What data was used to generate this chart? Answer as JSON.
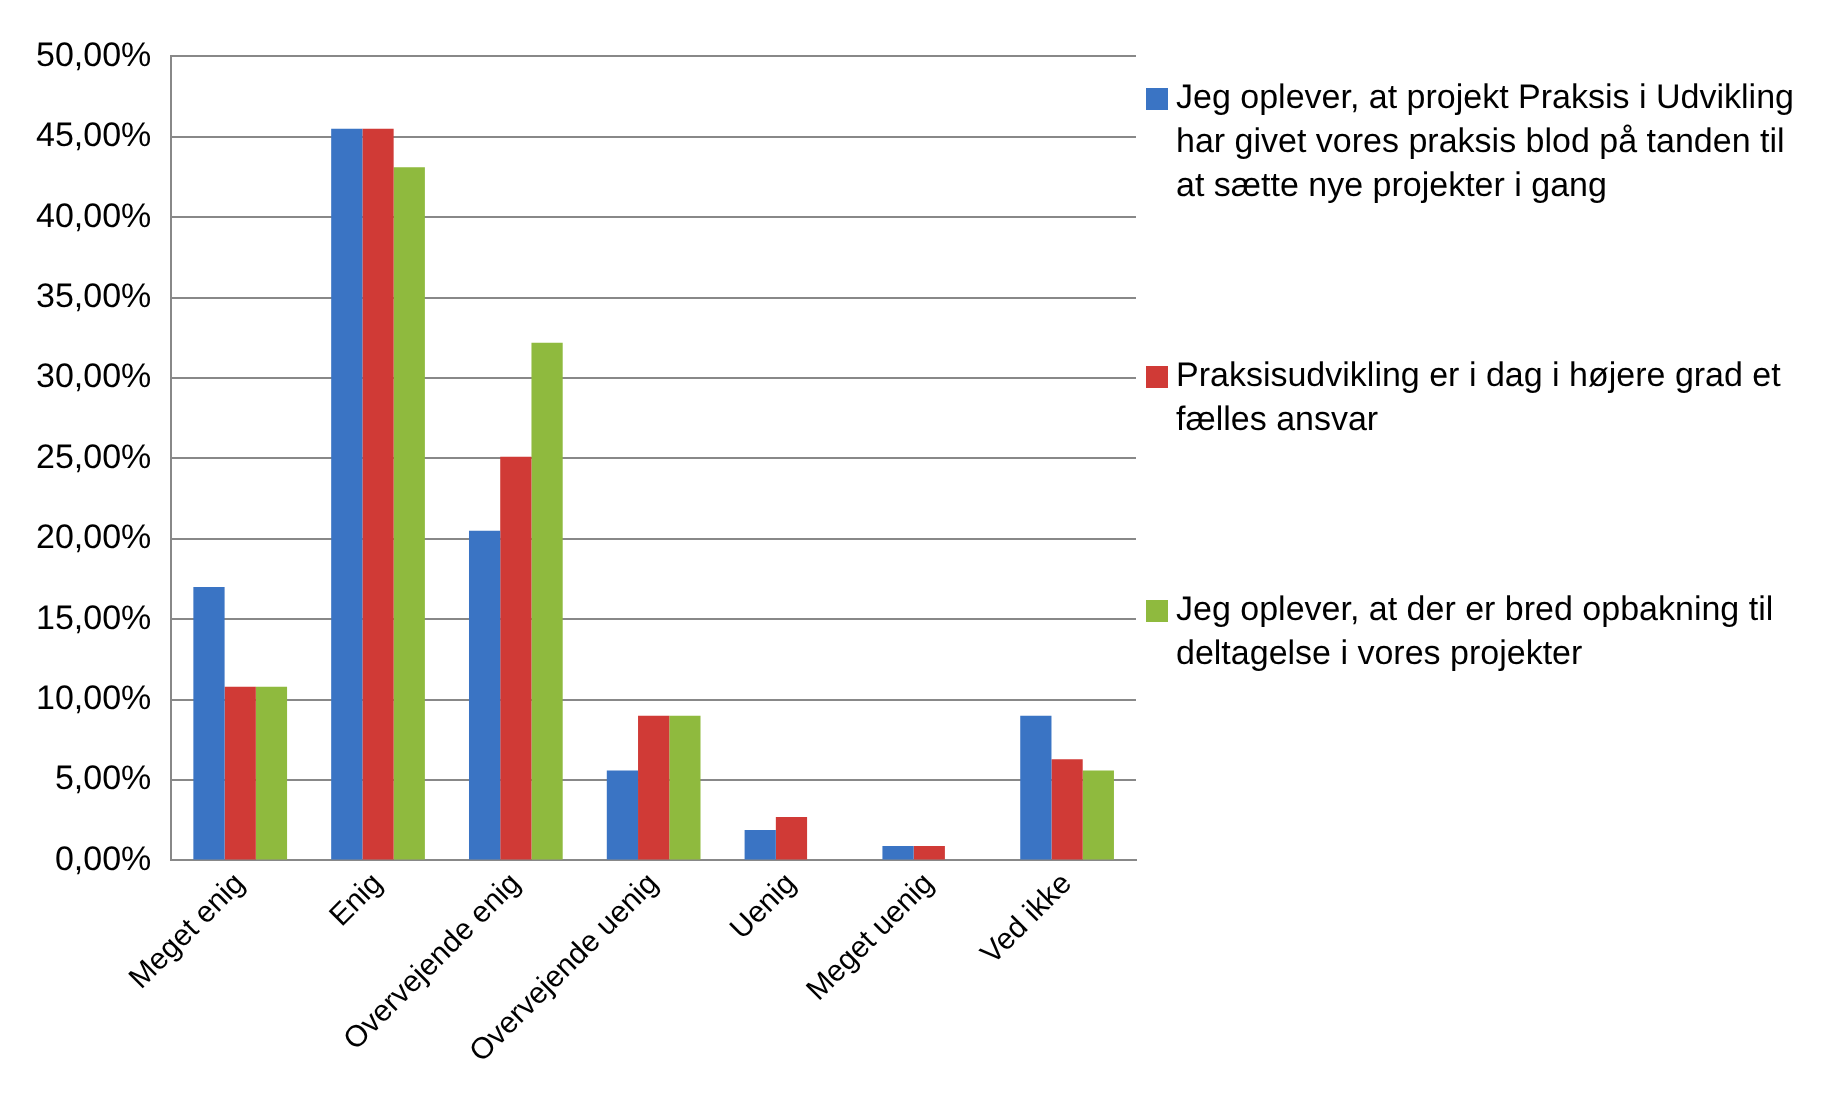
{
  "chart_data": {
    "type": "bar",
    "categories": [
      "Meget enig",
      "Enig",
      "Overvejende enig",
      "Overvejende uenig",
      "Uenig",
      "Meget uenig",
      "Ved ikke"
    ],
    "series": [
      {
        "name": "Jeg oplever, at projekt Praksis i Udvikling har givet vores praksis blod på tanden til at sætte nye projekter i gang",
        "color": "#3a74c4",
        "values": [
          17.0,
          45.5,
          20.5,
          5.6,
          1.9,
          0.9,
          9.0
        ]
      },
      {
        "name": "Praksisudvikling er i dag i højere grad et fælles ansvar",
        "color": "#d03a36",
        "values": [
          10.8,
          45.5,
          25.1,
          9.0,
          2.7,
          0.9,
          6.3
        ]
      },
      {
        "name": "Jeg oplever, at der er bred opbakning til deltagelse i vores projekter",
        "color": "#8fba3e",
        "values": [
          10.8,
          43.1,
          32.2,
          9.0,
          0,
          0,
          5.6
        ]
      }
    ],
    "ylim": [
      0,
      50
    ],
    "yticks": [
      {
        "value": 0,
        "label": "0,00%"
      },
      {
        "value": 5,
        "label": "5,00%"
      },
      {
        "value": 10,
        "label": "10,00%"
      },
      {
        "value": 15,
        "label": "15,00%"
      },
      {
        "value": 20,
        "label": "20,00%"
      },
      {
        "value": 25,
        "label": "25,00%"
      },
      {
        "value": 30,
        "label": "30,00%"
      },
      {
        "value": 35,
        "label": "35,00%"
      },
      {
        "value": 40,
        "label": "40,00%"
      },
      {
        "value": 45,
        "label": "45,00%"
      },
      {
        "value": 50,
        "label": "50,00%"
      }
    ],
    "grid": "y",
    "legend": "right"
  }
}
